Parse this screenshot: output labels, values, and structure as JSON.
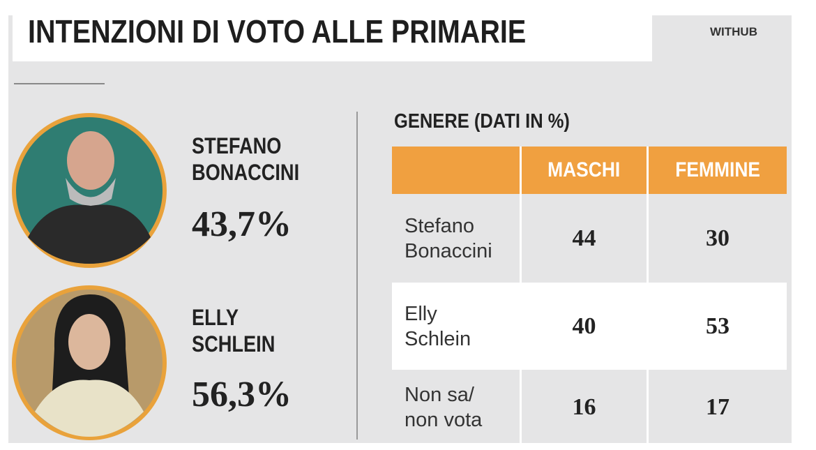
{
  "header": {
    "title": "INTENZIONI DI VOTO ALLE PRIMARIE",
    "source": "WITHUB"
  },
  "candidates": [
    {
      "name_lines": [
        "STEFANO",
        "BONACCINI"
      ],
      "percent": "43,7%"
    },
    {
      "name_lines": [
        "ELLY",
        "SCHLEIN"
      ],
      "percent": "56,3%"
    }
  ],
  "table": {
    "caption": "GENERE (DATI IN %)",
    "columns": [
      "MASCHI",
      "FEMMINE"
    ],
    "rows": [
      {
        "label_lines": [
          "Stefano",
          "Bonaccini"
        ],
        "values": [
          "44",
          "30"
        ]
      },
      {
        "label_lines": [
          "Elly",
          "Schlein"
        ],
        "values": [
          "40",
          "53"
        ]
      },
      {
        "label_lines": [
          "Non sa/",
          "non vota"
        ],
        "values": [
          "16",
          "17"
        ]
      }
    ]
  }
}
